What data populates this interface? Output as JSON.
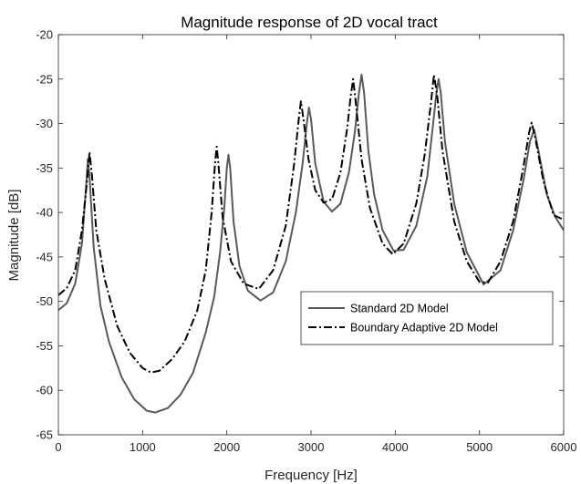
{
  "chart_data": {
    "type": "line",
    "title": "Magnitude response of 2D vocal tract",
    "xlabel": "Frequency [Hz]",
    "ylabel": "Magnitude [dB]",
    "xlim": [
      0,
      6000
    ],
    "ylim": [
      -65,
      -20
    ],
    "xticks": [
      0,
      1000,
      2000,
      3000,
      4000,
      5000,
      6000
    ],
    "yticks": [
      -20,
      -25,
      -30,
      -35,
      -40,
      -45,
      -50,
      -55,
      -60,
      -65
    ],
    "grid": false,
    "legend_position": "center-right",
    "series": [
      {
        "name": "Standard 2D Model",
        "color": "#595959",
        "dash": "solid",
        "points": [
          [
            0,
            -51.0
          ],
          [
            100,
            -50.2
          ],
          [
            200,
            -48.0
          ],
          [
            280,
            -43.5
          ],
          [
            330,
            -37.0
          ],
          [
            350,
            -34.0
          ],
          [
            370,
            -36.0
          ],
          [
            420,
            -44.0
          ],
          [
            500,
            -50.5
          ],
          [
            600,
            -54.5
          ],
          [
            750,
            -58.5
          ],
          [
            900,
            -61.0
          ],
          [
            1050,
            -62.3
          ],
          [
            1150,
            -62.5
          ],
          [
            1300,
            -62.0
          ],
          [
            1450,
            -60.5
          ],
          [
            1600,
            -58.0
          ],
          [
            1750,
            -53.5
          ],
          [
            1850,
            -49.5
          ],
          [
            1920,
            -44.5
          ],
          [
            1970,
            -39.5
          ],
          [
            2000,
            -35.0
          ],
          [
            2020,
            -33.5
          ],
          [
            2040,
            -35.0
          ],
          [
            2080,
            -41.0
          ],
          [
            2150,
            -46.0
          ],
          [
            2250,
            -48.8
          ],
          [
            2400,
            -49.9
          ],
          [
            2550,
            -49.0
          ],
          [
            2700,
            -45.5
          ],
          [
            2820,
            -40.0
          ],
          [
            2900,
            -34.5
          ],
          [
            2950,
            -30.0
          ],
          [
            2975,
            -28.2
          ],
          [
            3000,
            -29.5
          ],
          [
            3050,
            -34.5
          ],
          [
            3150,
            -38.8
          ],
          [
            3250,
            -39.9
          ],
          [
            3350,
            -39.0
          ],
          [
            3450,
            -35.5
          ],
          [
            3520,
            -31.0
          ],
          [
            3570,
            -26.5
          ],
          [
            3600,
            -24.5
          ],
          [
            3630,
            -26.5
          ],
          [
            3680,
            -33.0
          ],
          [
            3750,
            -38.0
          ],
          [
            3850,
            -42.0
          ],
          [
            3980,
            -44.3
          ],
          [
            4100,
            -44.2
          ],
          [
            4250,
            -41.5
          ],
          [
            4380,
            -36.0
          ],
          [
            4450,
            -30.0
          ],
          [
            4490,
            -26.5
          ],
          [
            4515,
            -25.0
          ],
          [
            4540,
            -26.5
          ],
          [
            4590,
            -32.0
          ],
          [
            4700,
            -39.0
          ],
          [
            4850,
            -44.5
          ],
          [
            5050,
            -48.1
          ],
          [
            5250,
            -46.5
          ],
          [
            5400,
            -42.0
          ],
          [
            5530,
            -36.0
          ],
          [
            5600,
            -32.0
          ],
          [
            5650,
            -30.7
          ],
          [
            5700,
            -33.0
          ],
          [
            5800,
            -38.0
          ],
          [
            5900,
            -40.5
          ],
          [
            6000,
            -42.0
          ]
        ]
      },
      {
        "name": "Boundary Adaptive 2D Model",
        "color": "#000000",
        "dash": "dashdot",
        "points": [
          [
            0,
            -49.3
          ],
          [
            100,
            -48.5
          ],
          [
            200,
            -46.5
          ],
          [
            280,
            -42.0
          ],
          [
            340,
            -36.5
          ],
          [
            370,
            -33.2
          ],
          [
            400,
            -36.0
          ],
          [
            450,
            -42.0
          ],
          [
            550,
            -47.5
          ],
          [
            700,
            -52.8
          ],
          [
            850,
            -55.8
          ],
          [
            1000,
            -57.5
          ],
          [
            1100,
            -58.0
          ],
          [
            1200,
            -57.8
          ],
          [
            1350,
            -56.5
          ],
          [
            1500,
            -54.5
          ],
          [
            1650,
            -51.0
          ],
          [
            1750,
            -46.5
          ],
          [
            1820,
            -40.0
          ],
          [
            1860,
            -34.5
          ],
          [
            1880,
            -32.6
          ],
          [
            1900,
            -34.5
          ],
          [
            1950,
            -40.5
          ],
          [
            2050,
            -45.5
          ],
          [
            2200,
            -48.0
          ],
          [
            2380,
            -48.6
          ],
          [
            2550,
            -46.5
          ],
          [
            2700,
            -41.5
          ],
          [
            2800,
            -34.5
          ],
          [
            2860,
            -29.0
          ],
          [
            2880,
            -27.5
          ],
          [
            2910,
            -29.5
          ],
          [
            2970,
            -34.0
          ],
          [
            3050,
            -37.5
          ],
          [
            3150,
            -38.9
          ],
          [
            3250,
            -38.5
          ],
          [
            3350,
            -35.5
          ],
          [
            3430,
            -30.5
          ],
          [
            3470,
            -27.0
          ],
          [
            3500,
            -25.0
          ],
          [
            3530,
            -27.5
          ],
          [
            3600,
            -34.0
          ],
          [
            3700,
            -39.5
          ],
          [
            3850,
            -43.5
          ],
          [
            3970,
            -44.7
          ],
          [
            4100,
            -43.5
          ],
          [
            4250,
            -39.0
          ],
          [
            4350,
            -33.5
          ],
          [
            4420,
            -28.0
          ],
          [
            4460,
            -24.5
          ],
          [
            4500,
            -27.0
          ],
          [
            4560,
            -33.0
          ],
          [
            4700,
            -41.0
          ],
          [
            4850,
            -45.5
          ],
          [
            5000,
            -47.8
          ],
          [
            5100,
            -47.9
          ],
          [
            5250,
            -45.5
          ],
          [
            5400,
            -41.0
          ],
          [
            5520,
            -35.0
          ],
          [
            5590,
            -31.0
          ],
          [
            5620,
            -29.9
          ],
          [
            5660,
            -31.5
          ],
          [
            5760,
            -36.5
          ],
          [
            5880,
            -40.3
          ],
          [
            6000,
            -40.8
          ]
        ]
      }
    ]
  }
}
